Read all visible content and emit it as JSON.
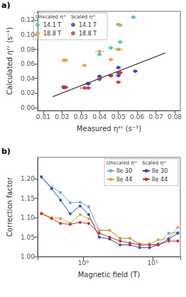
{
  "chart_data": [
    {
      "type": "scatter",
      "annotations": [
        "a)"
      ],
      "xlabel": "Measured ηᶻᶜ (s⁻¹)",
      "ylabel": "Calculated ηᶻᶜ (s⁻¹)",
      "xlim": [
        0.007,
        0.083
      ],
      "xticks": [
        0.01,
        0.02,
        0.03,
        0.04,
        0.05,
        0.06,
        0.07,
        0.08
      ],
      "ylim": [
        -0.004,
        0.132
      ],
      "yticks": [
        {
          "value": 0,
          "label": "0.00"
        },
        0.02,
        0.04,
        0.06,
        0.08,
        {
          "value": 0.1,
          "label": "0.10"
        },
        0.12
      ],
      "grid": false,
      "legend": "upper left",
      "marker": "circle",
      "series": [
        {
          "type": "line",
          "color": "#000000",
          "marker": "none",
          "x": [
            0.015,
            0.075
          ],
          "values": [
            0.015,
            0.075
          ]
        },
        {
          "name": "14.1 T",
          "group": "Unscaled ηᶻᶜ",
          "color": "#4BBFC8",
          "x": [
            0.021,
            0.021,
            0.04,
            0.046,
            0.05,
            0.05,
            0.051,
            0.058
          ],
          "values": [
            0.028,
            0.028,
            0.073,
            0.082,
            0.08,
            0.114,
            0.09,
            0.124
          ],
          "xerr": [
            0.0008,
            0.0008,
            0.001,
            0.001,
            0.001,
            0.001,
            0.001,
            0.001
          ],
          "yerr": [
            0.001,
            0.001,
            0.001,
            0.001,
            0.001,
            0.001,
            0.001,
            0.001
          ]
        },
        {
          "name": "18.8 T",
          "group": "Unscaled ηᶻᶜ",
          "color": "#E8A030",
          "x": [
            0.021,
            0.022,
            0.032,
            0.04,
            0.046,
            0.05,
            0.051
          ],
          "values": [
            0.065,
            0.065,
            0.058,
            0.077,
            0.066,
            0.08,
            0.113
          ],
          "xerr": [
            0.001,
            0.001,
            0.001,
            0.002,
            0.001,
            0.002,
            0.001
          ],
          "yerr": [
            0.001,
            0.001,
            0.001,
            0.001,
            0.001,
            0.001,
            0.001
          ]
        },
        {
          "name": "14.1 T",
          "group": "Scaled ηᶻᶜ",
          "color": "#3040B0",
          "x": [
            0.021,
            0.021,
            0.034,
            0.034,
            0.04,
            0.046,
            0.05,
            0.05,
            0.059
          ],
          "values": [
            0.028,
            0.028,
            0.033,
            0.033,
            0.043,
            0.044,
            0.055,
            0.044,
            0.05
          ],
          "xerr": [
            0.0008,
            0.0008,
            0.001,
            0.001,
            0.001,
            0.001,
            0.001,
            0.001,
            0.001
          ],
          "yerr": [
            0.001,
            0.001,
            0.001,
            0.001,
            0.001,
            0.001,
            0.001,
            0.001,
            0.001
          ]
        },
        {
          "name": "18.8 T",
          "group": "Scaled ηᶻᶜ",
          "color": "#C83030",
          "x": [
            0.021,
            0.022,
            0.032,
            0.034,
            0.04,
            0.046,
            0.05,
            0.05,
            0.051
          ],
          "values": [
            0.028,
            0.028,
            0.027,
            0.027,
            0.039,
            0.044,
            0.048,
            0.035,
            0.048
          ],
          "xerr": [
            0.001,
            0.001,
            0.002,
            0.001,
            0.001,
            0.001,
            0.001,
            0.001,
            0.001
          ],
          "yerr": [
            0.001,
            0.001,
            0.001,
            0.001,
            0.001,
            0.001,
            0.001,
            0.001,
            0.001
          ]
        }
      ]
    },
    {
      "type": "line",
      "annotations": [
        "b)"
      ],
      "xlabel": "Magnetic field (T)",
      "ylabel": "Correction factor",
      "log": "x",
      "xlim": [
        0.22,
        25
      ],
      "xticks": [
        {
          "value": 1,
          "label": "10⁰"
        },
        {
          "value": 10,
          "label": "10¹"
        }
      ],
      "ylim": [
        1.0,
        1.255
      ],
      "yticks": [
        {
          "value": 1.0,
          "label": "1.00"
        },
        1.05,
        {
          "value": 1.1,
          "label": "1.10"
        },
        1.15,
        {
          "value": 1.2,
          "label": "1.20"
        }
      ],
      "grid": false,
      "legend": "upper right",
      "marker": "circle",
      "series": [
        {
          "name": "Ile 30",
          "group": "Unscaled ηᶻᶜ",
          "color": "#6AADD5",
          "x": [
            0.25,
            0.35,
            0.47,
            0.65,
            0.9,
            1.2,
            1.7,
            2.4,
            3.4,
            4.7,
            6.5,
            9.0,
            12,
            17,
            23
          ],
          "values": [
            1.205,
            1.178,
            1.165,
            1.138,
            1.14,
            1.128,
            1.067,
            1.067,
            1.047,
            1.047,
            1.03,
            1.03,
            1.033,
            1.06,
            1.062
          ]
        },
        {
          "name": "Ile 44",
          "group": "Unscaled ηᶻᶜ",
          "color": "#E8A030",
          "x": [
            0.25,
            0.35,
            0.47,
            0.65,
            0.9,
            1.2,
            1.7,
            2.4,
            3.4,
            4.7,
            6.5,
            9.0,
            12,
            17,
            23
          ],
          "values": [
            1.112,
            1.1,
            1.098,
            1.086,
            1.108,
            1.097,
            1.068,
            1.068,
            1.047,
            1.047,
            1.033,
            1.033,
            1.043,
            1.047,
            1.075
          ]
        },
        {
          "name": "Ile 30",
          "group": "Scaled ηᶻᶜ",
          "color": "#2F4BB5",
          "x": [
            0.25,
            0.35,
            0.47,
            0.65,
            0.9,
            1.2,
            1.7,
            2.4,
            3.4,
            4.7,
            6.5,
            9.0,
            12,
            17,
            23
          ],
          "values": [
            1.205,
            1.175,
            1.145,
            1.11,
            1.13,
            1.108,
            1.05,
            1.045,
            1.03,
            1.03,
            1.023,
            1.023,
            1.03,
            1.045,
            1.06
          ]
        },
        {
          "name": "Ile 44",
          "group": "Scaled ηᶻᶜ",
          "color": "#C83030",
          "x": [
            0.25,
            0.35,
            0.47,
            0.65,
            0.9,
            1.2,
            1.7,
            2.4,
            3.4,
            4.7,
            6.5,
            9.0,
            12,
            17,
            23
          ],
          "values": [
            1.11,
            1.098,
            1.085,
            1.083,
            1.088,
            1.085,
            1.06,
            1.05,
            1.04,
            1.035,
            1.03,
            1.03,
            1.03,
            1.04,
            1.04
          ]
        }
      ]
    }
  ]
}
